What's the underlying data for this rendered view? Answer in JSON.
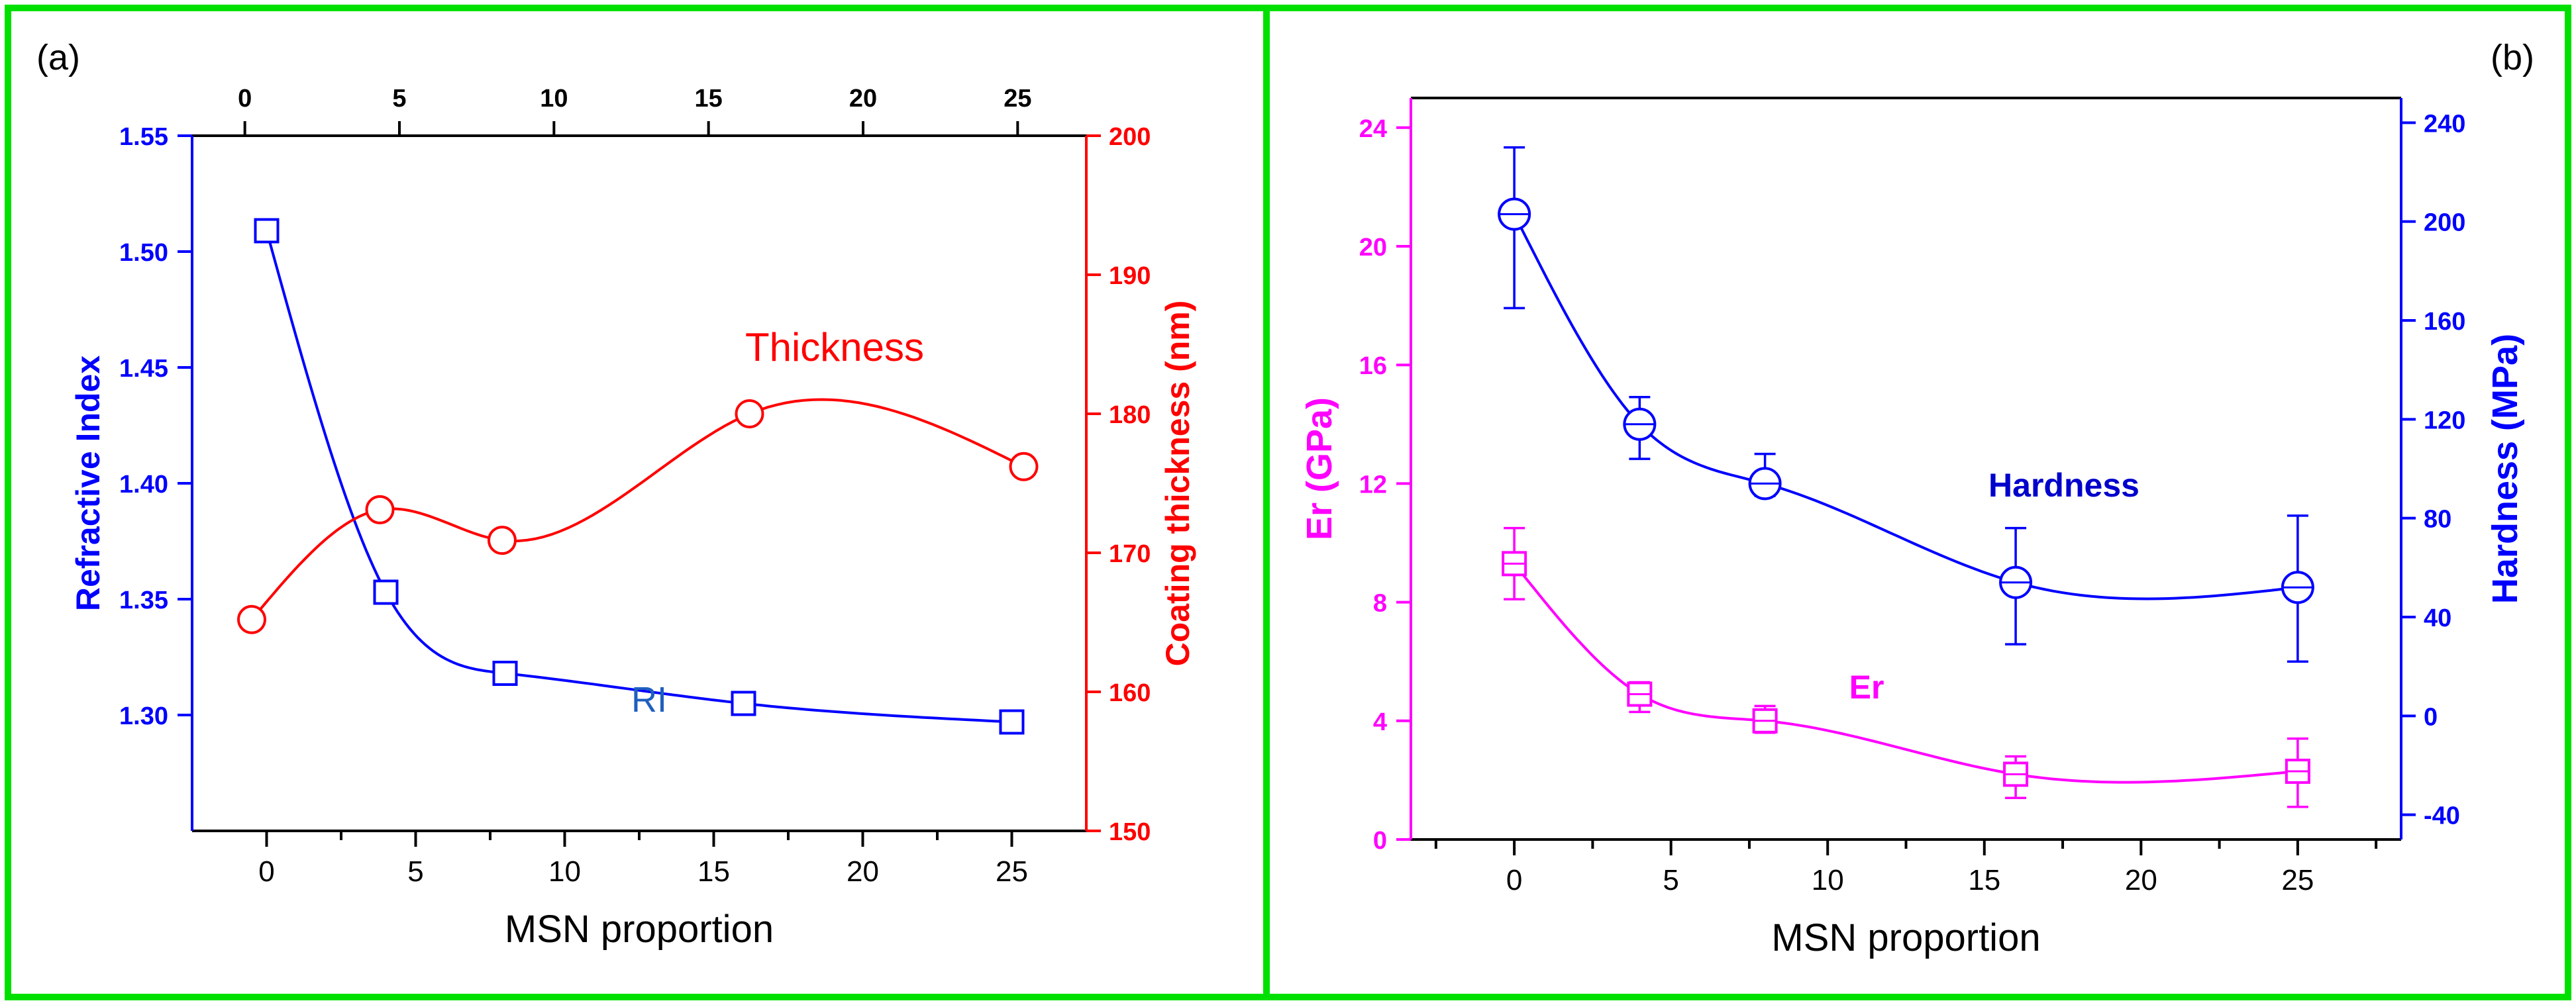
{
  "chart_data": [
    {
      "panel_label": "(a)",
      "type": "scatter",
      "x_label": "MSN proportion",
      "x_ticks": [
        0,
        5,
        10,
        15,
        20,
        25
      ],
      "top_x_ticks": [
        0,
        5,
        10,
        15,
        20,
        25
      ],
      "xlim": [
        -2.5,
        27.5
      ],
      "y_left": {
        "label": "Refractive Index",
        "ylim": [
          1.25,
          1.55
        ],
        "ticks": [
          "1.30",
          "1.35",
          "1.40",
          "1.45",
          "1.50",
          "1.55"
        ],
        "color": "#0000FF"
      },
      "y_right": {
        "label": "Coating thickness (nm)",
        "ylim": [
          150,
          200
        ],
        "ticks": [
          150,
          160,
          170,
          180,
          190,
          200
        ],
        "color": "#FF0000"
      },
      "series": [
        {
          "name": "RI",
          "axis": "left",
          "marker": "square",
          "color": "#0000FF",
          "label_color": "#1F5FBF",
          "x": [
            0,
            4,
            8,
            16,
            25
          ],
          "y": [
            1.509,
            1.353,
            1.318,
            1.305,
            1.297
          ]
        },
        {
          "name": "Thickness",
          "axis": "right",
          "marker": "circle",
          "color": "#FF0000",
          "label_color": "#FF0000",
          "x": [
            -0.5,
            3.8,
            7.9,
            16.2,
            25.4
          ],
          "y": [
            165.2,
            173.1,
            170.9,
            180.0,
            176.2
          ]
        }
      ]
    },
    {
      "panel_label": "(b)",
      "type": "scatter",
      "x_label": "MSN proportion",
      "x_ticks": [
        0,
        5,
        10,
        15,
        20,
        25
      ],
      "xlim": [
        -3.3,
        28.3
      ],
      "y_left": {
        "label": "Er (GPa)",
        "ylim": [
          0,
          25
        ],
        "ticks": [
          0,
          4,
          8,
          12,
          16,
          20,
          24
        ],
        "color": "#FF00FF"
      },
      "y_right": {
        "label": "Hardness (MPa)",
        "ylim": [
          -50,
          250
        ],
        "ticks": [
          -40,
          0,
          40,
          80,
          120,
          160,
          200,
          240
        ],
        "color": "#0000FF"
      },
      "series": [
        {
          "name": "Hardness",
          "axis": "right",
          "marker": "circle-bar",
          "color": "#0000FF",
          "label_color": "#0000CC",
          "x": [
            0,
            4,
            8,
            16,
            25
          ],
          "y": [
            203,
            118,
            94,
            54,
            52
          ],
          "err_low": [
            165,
            104,
            89,
            29,
            22
          ],
          "err_high": [
            230,
            129,
            106,
            76,
            81
          ]
        },
        {
          "name": "Er",
          "axis": "left",
          "marker": "square-bar",
          "color": "#FF00FF",
          "label_color": "#FF00FF",
          "x": [
            0,
            4,
            8,
            16,
            25
          ],
          "y": [
            9.3,
            4.9,
            4.0,
            2.2,
            2.3
          ],
          "err_low": [
            8.1,
            4.3,
            3.6,
            1.4,
            1.1
          ],
          "err_high": [
            10.5,
            5.3,
            4.5,
            2.8,
            3.4
          ]
        }
      ]
    }
  ]
}
